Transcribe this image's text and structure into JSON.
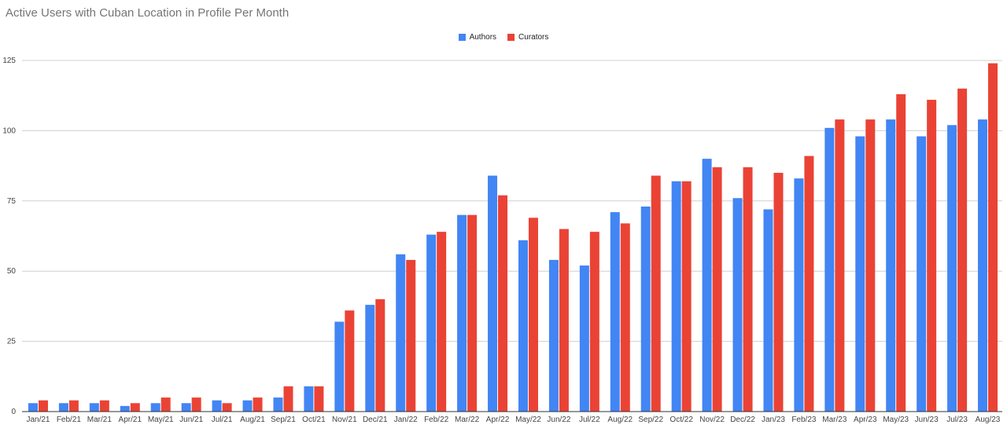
{
  "chart_data": {
    "type": "bar",
    "title": "Active Users with Cuban Location in Profile Per Month",
    "xlabel": "",
    "ylabel": "",
    "ylim": [
      0,
      125
    ],
    "yticks": [
      0,
      25,
      50,
      75,
      100,
      125
    ],
    "grid": true,
    "legend_position": "top-center",
    "categories": [
      "Jan/21",
      "Feb/21",
      "Mar/21",
      "Apr/21",
      "May/21",
      "Jun/21",
      "Jul/21",
      "Aug/21",
      "Sep/21",
      "Oct/21",
      "Nov/21",
      "Dec/21",
      "Jan/22",
      "Feb/22",
      "Mar/22",
      "Apr/22",
      "May/22",
      "Jun/22",
      "Jul/22",
      "Aug/22",
      "Sep/22",
      "Oct/22",
      "Nov/22",
      "Dec/22",
      "Jan/23",
      "Feb/23",
      "Mar/23",
      "Apr/23",
      "May/23",
      "Jun/23",
      "Jul/23",
      "Aug/23"
    ],
    "series": [
      {
        "name": "Authors",
        "color": "#4285f4",
        "values": [
          3,
          3,
          3,
          2,
          3,
          3,
          4,
          4,
          5,
          9,
          32,
          38,
          56,
          63,
          70,
          84,
          61,
          54,
          52,
          71,
          73,
          82,
          90,
          76,
          72,
          83,
          101,
          98,
          104,
          98,
          102,
          104
        ]
      },
      {
        "name": "Curators",
        "color": "#ea4335",
        "values": [
          4,
          4,
          4,
          3,
          5,
          5,
          3,
          5,
          9,
          9,
          36,
          40,
          54,
          64,
          70,
          77,
          69,
          65,
          64,
          67,
          84,
          82,
          87,
          87,
          85,
          91,
          104,
          104,
          113,
          111,
          115,
          124
        ]
      }
    ]
  }
}
